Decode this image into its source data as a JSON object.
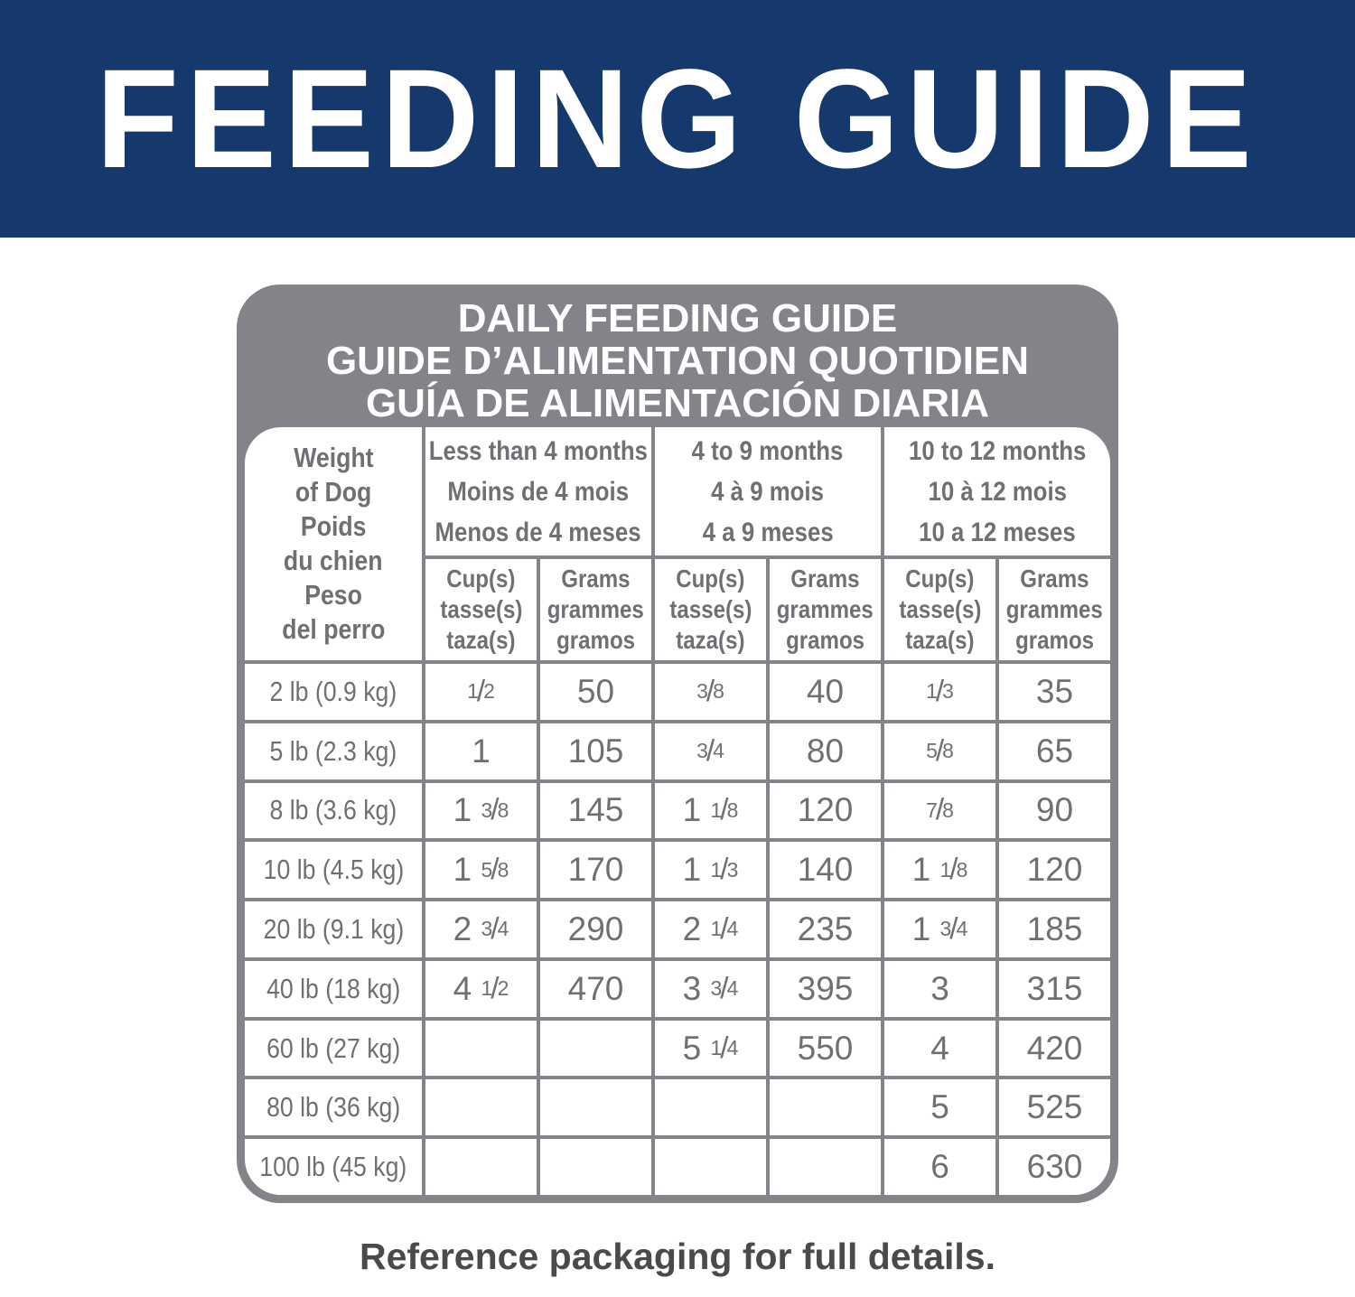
{
  "banner": {
    "title": "FEEDING GUIDE",
    "bg_color": "#15396C",
    "text_color": "#FFFFFF"
  },
  "panel": {
    "bg_color": "#838489",
    "title_lines": [
      "DAILY FEEDING GUIDE",
      "GUIDE D’ALIMENTATION QUOTIDIEN",
      "GUÍA DE ALIMENTACIÓN DIARIA"
    ]
  },
  "table": {
    "text_color": "#6F7074",
    "grid_color": "#838489",
    "weight_header_lines": [
      "Weight",
      "of Dog",
      "Poids",
      "du chien",
      "Peso",
      "del perro"
    ],
    "age_groups": [
      {
        "lines": [
          "Less than 4 months",
          "Moins de 4 mois",
          "Menos de 4 meses"
        ]
      },
      {
        "lines": [
          "4 to 9 months",
          "4 à 9 mois",
          "4 a 9 meses"
        ]
      },
      {
        "lines": [
          "10 to 12 months",
          "10 à 12 mois",
          "10 a 12 meses"
        ]
      }
    ],
    "unit_headers": [
      {
        "lines": [
          "Cup(s)",
          "tasse(s)",
          "taza(s)"
        ]
      },
      {
        "lines": [
          "Grams",
          "grammes",
          "gramos"
        ]
      },
      {
        "lines": [
          "Cup(s)",
          "tasse(s)",
          "taza(s)"
        ]
      },
      {
        "lines": [
          "Grams",
          "grammes",
          "gramos"
        ]
      },
      {
        "lines": [
          "Cup(s)",
          "tasse(s)",
          "taza(s)"
        ]
      },
      {
        "lines": [
          "Grams",
          "grammes",
          "gramos"
        ]
      }
    ],
    "rows": [
      {
        "weight": "2 lb (0.9 kg)",
        "values": [
          "1/2",
          "50",
          "3/8",
          "40",
          "1/3",
          "35"
        ]
      },
      {
        "weight": "5 lb (2.3 kg)",
        "values": [
          "1",
          "105",
          "3/4",
          "80",
          "5/8",
          "65"
        ]
      },
      {
        "weight": "8 lb (3.6 kg)",
        "values": [
          "1 3/8",
          "145",
          "1 1/8",
          "120",
          "7/8",
          "90"
        ]
      },
      {
        "weight": "10 lb (4.5 kg)",
        "values": [
          "1 5/8",
          "170",
          "1 1/3",
          "140",
          "1 1/8",
          "120"
        ]
      },
      {
        "weight": "20 lb (9.1 kg)",
        "values": [
          "2 3/4",
          "290",
          "2 1/4",
          "235",
          "1 3/4",
          "185"
        ]
      },
      {
        "weight": "40 lb (18 kg)",
        "values": [
          "4 1/2",
          "470",
          "3 3/4",
          "395",
          "3",
          "315"
        ]
      },
      {
        "weight": "60 lb (27 kg)",
        "values": [
          "",
          "",
          "5 1/4",
          "550",
          "4",
          "420"
        ]
      },
      {
        "weight": "80 lb (36 kg)",
        "values": [
          "",
          "",
          "",
          "",
          "5",
          "525"
        ]
      },
      {
        "weight": "100 lb (45 kg)",
        "values": [
          "",
          "",
          "",
          "",
          "6",
          "630"
        ]
      }
    ]
  },
  "footer": {
    "note": "Reference packaging for full details.",
    "text_color": "#4A4A4A"
  }
}
